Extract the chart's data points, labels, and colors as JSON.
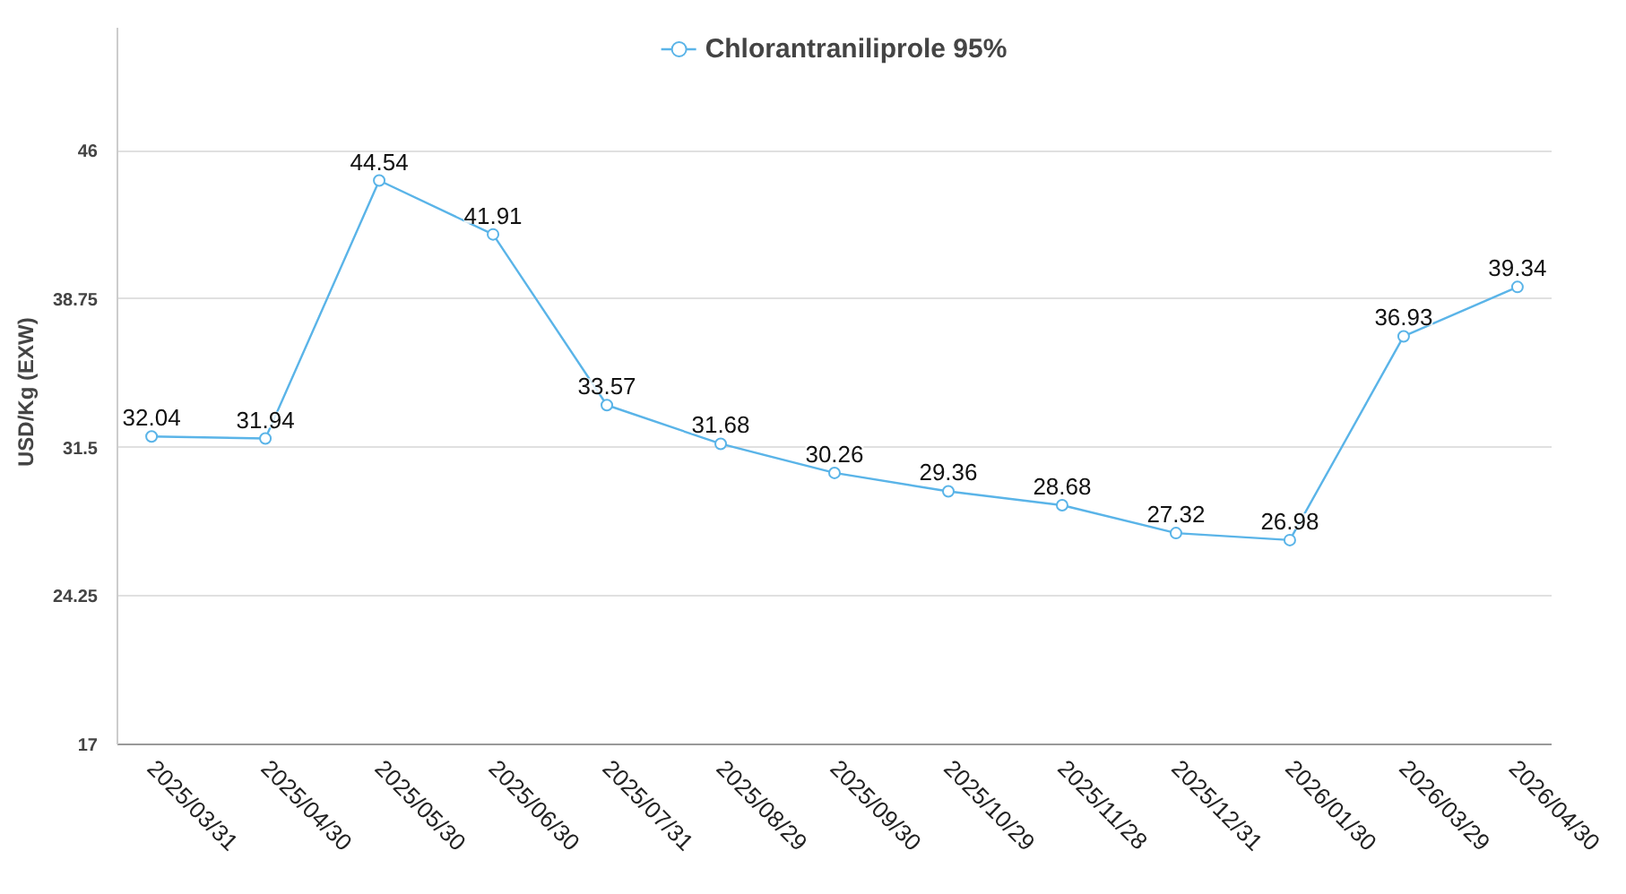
{
  "chart_data": {
    "type": "line",
    "ylabel": "USD/Kg   (EXW)",
    "categories": [
      "2025/03/31",
      "2025/04/30",
      "2025/05/30",
      "2025/06/30",
      "2025/07/31",
      "2025/08/29",
      "2025/09/30",
      "2025/10/29",
      "2025/11/28",
      "2025/12/31",
      "2026/01/30",
      "2026/03/29",
      "2026/04/30"
    ],
    "series": [
      {
        "name": "Chlorantraniliprole 95%",
        "color": "#5ab4e8",
        "values": [
          32.04,
          31.94,
          44.54,
          41.91,
          33.57,
          31.68,
          30.26,
          29.36,
          28.68,
          27.32,
          26.98,
          36.93,
          39.34
        ]
      }
    ],
    "ylim": [
      17,
      52
    ],
    "yticks": [
      17,
      24.25,
      31.5,
      38.75,
      46
    ],
    "grid": "y",
    "legend": "top",
    "marker": "circle",
    "line_style": "solid",
    "data_labels": true
  }
}
